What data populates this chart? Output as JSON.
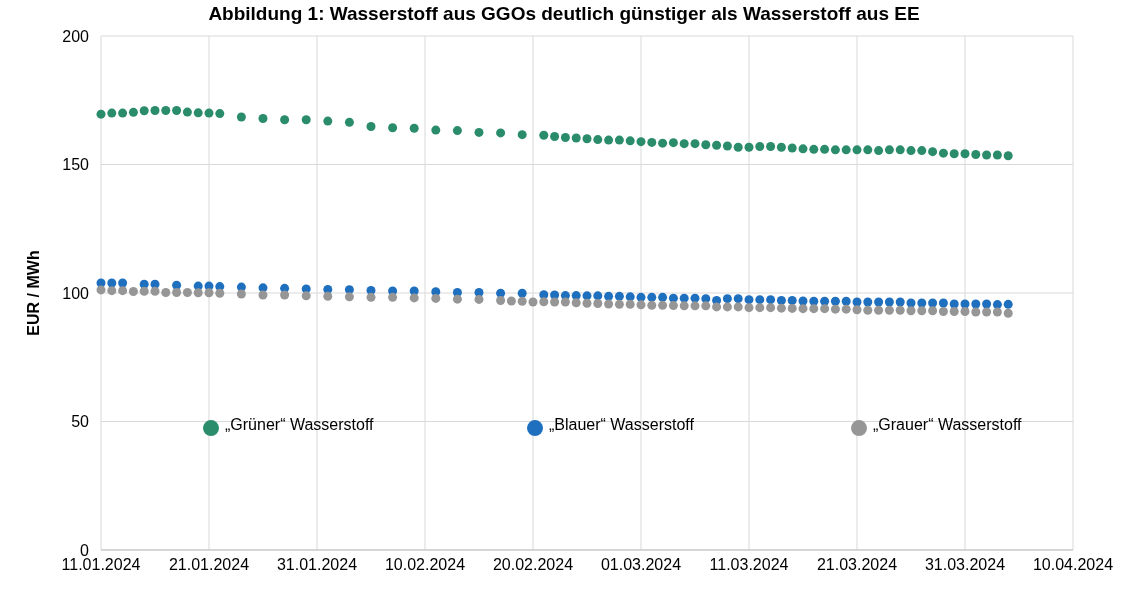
{
  "chart_data": {
    "type": "scatter",
    "title": "Abbildung 1: Wasserstoff aus GGOs deutlich günstiger als Wasserstoff aus EE",
    "ylabel": "EUR / MWh",
    "xlim": [
      "2024-01-11",
      "2024-04-10"
    ],
    "xticks": [
      {
        "value": "2024-01-11",
        "label": "11.01.2024"
      },
      {
        "value": "2024-01-21",
        "label": "21.01.2024"
      },
      {
        "value": "2024-01-31",
        "label": "31.01.2024"
      },
      {
        "value": "2024-02-10",
        "label": "10.02.2024"
      },
      {
        "value": "2024-02-20",
        "label": "20.02.2024"
      },
      {
        "value": "2024-03-01",
        "label": "01.03.2024"
      },
      {
        "value": "2024-03-11",
        "label": "11.03.2024"
      },
      {
        "value": "2024-03-21",
        "label": "21.03.2024"
      },
      {
        "value": "2024-03-31",
        "label": "31.03.2024"
      },
      {
        "value": "2024-04-10",
        "label": "10.04.2024"
      }
    ],
    "ylim": [
      0,
      200
    ],
    "yticks": [
      0,
      50,
      100,
      150,
      200
    ],
    "grid": true,
    "legend": "bottom",
    "marker": "circle",
    "series": [
      {
        "name": "„Grüner“ Wasserstoff",
        "color": "#2a8c6a",
        "x": [
          "2024-01-11",
          "2024-01-12",
          "2024-01-13",
          "2024-01-14",
          "2024-01-15",
          "2024-01-16",
          "2024-01-17",
          "2024-01-18",
          "2024-01-19",
          "2024-01-20",
          "2024-01-21",
          "2024-01-22",
          "2024-01-24",
          "2024-01-26",
          "2024-01-28",
          "2024-01-30",
          "2024-02-01",
          "2024-02-03",
          "2024-02-05",
          "2024-02-07",
          "2024-02-09",
          "2024-02-11",
          "2024-02-13",
          "2024-02-15",
          "2024-02-17",
          "2024-02-19",
          "2024-02-21",
          "2024-02-22",
          "2024-02-23",
          "2024-02-24",
          "2024-02-25",
          "2024-02-26",
          "2024-02-27",
          "2024-02-28",
          "2024-02-29",
          "2024-03-01",
          "2024-03-02",
          "2024-03-03",
          "2024-03-04",
          "2024-03-05",
          "2024-03-06",
          "2024-03-07",
          "2024-03-08",
          "2024-03-09",
          "2024-03-10",
          "2024-03-11",
          "2024-03-12",
          "2024-03-13",
          "2024-03-14",
          "2024-03-15",
          "2024-03-16",
          "2024-03-17",
          "2024-03-18",
          "2024-03-19",
          "2024-03-20",
          "2024-03-21",
          "2024-03-22",
          "2024-03-23",
          "2024-03-24",
          "2024-03-25",
          "2024-03-26",
          "2024-03-27",
          "2024-03-28",
          "2024-03-29",
          "2024-03-30",
          "2024-03-31",
          "2024-04-01",
          "2024-04-02",
          "2024-04-03",
          "2024-04-04"
        ],
        "values": [
          169.6,
          170.0,
          170.0,
          170.3,
          170.9,
          171.0,
          171.0,
          171.0,
          170.4,
          170.1,
          170.0,
          169.8,
          168.5,
          167.9,
          167.4,
          167.4,
          166.9,
          166.4,
          164.8,
          164.3,
          164.1,
          163.4,
          163.2,
          162.5,
          162.3,
          161.6,
          161.4,
          160.9,
          160.5,
          160.3,
          160.0,
          159.7,
          159.5,
          159.5,
          159.2,
          158.9,
          158.6,
          158.3,
          158.5,
          158.1,
          158.1,
          157.7,
          157.5,
          157.2,
          156.7,
          156.7,
          157.0,
          157.0,
          156.7,
          156.4,
          156.1,
          155.9,
          155.9,
          155.7,
          155.7,
          155.7,
          155.7,
          155.4,
          155.7,
          155.7,
          155.4,
          155.4,
          155.0,
          154.4,
          154.2,
          154.2,
          153.9,
          153.7,
          153.7,
          153.4
        ]
      },
      {
        "name": "„Blauer“ Wasserstoff",
        "color": "#1f6fbf",
        "x": [
          "2024-01-11",
          "2024-01-12",
          "2024-01-13",
          "2024-01-15",
          "2024-01-16",
          "2024-01-18",
          "2024-01-20",
          "2024-01-21",
          "2024-01-22",
          "2024-01-24",
          "2024-01-26",
          "2024-01-28",
          "2024-01-30",
          "2024-02-01",
          "2024-02-03",
          "2024-02-05",
          "2024-02-07",
          "2024-02-09",
          "2024-02-11",
          "2024-02-13",
          "2024-02-15",
          "2024-02-17",
          "2024-02-19",
          "2024-02-21",
          "2024-02-22",
          "2024-02-23",
          "2024-02-24",
          "2024-02-25",
          "2024-02-26",
          "2024-02-27",
          "2024-02-28",
          "2024-02-29",
          "2024-03-01",
          "2024-03-02",
          "2024-03-03",
          "2024-03-04",
          "2024-03-05",
          "2024-03-06",
          "2024-03-07",
          "2024-03-08",
          "2024-03-09",
          "2024-03-10",
          "2024-03-11",
          "2024-03-12",
          "2024-03-13",
          "2024-03-14",
          "2024-03-15",
          "2024-03-16",
          "2024-03-17",
          "2024-03-18",
          "2024-03-19",
          "2024-03-20",
          "2024-03-21",
          "2024-03-22",
          "2024-03-23",
          "2024-03-24",
          "2024-03-25",
          "2024-03-26",
          "2024-03-27",
          "2024-03-28",
          "2024-03-29",
          "2024-03-30",
          "2024-03-31",
          "2024-04-01",
          "2024-04-02",
          "2024-04-03",
          "2024-04-04"
        ],
        "values": [
          103.9,
          103.9,
          103.9,
          103.4,
          103.4,
          103.0,
          102.7,
          102.7,
          102.5,
          102.3,
          102.0,
          101.8,
          101.6,
          101.4,
          101.3,
          101.0,
          100.8,
          100.8,
          100.5,
          100.2,
          100.2,
          99.9,
          99.9,
          99.3,
          99.2,
          99.0,
          99.0,
          98.9,
          98.9,
          98.7,
          98.7,
          98.5,
          98.3,
          98.3,
          98.3,
          98.0,
          98.0,
          98.0,
          97.8,
          97.1,
          97.8,
          97.8,
          97.4,
          97.4,
          97.4,
          97.1,
          97.1,
          96.9,
          96.8,
          96.8,
          96.8,
          96.8,
          96.5,
          96.5,
          96.5,
          96.5,
          96.5,
          96.1,
          96.1,
          96.1,
          96.1,
          95.7,
          95.7,
          95.7,
          95.7,
          95.5,
          95.6
        ]
      },
      {
        "name": "„Grauer“ Wasserstoff",
        "color": "#969696",
        "x": [
          "2024-01-11",
          "2024-01-12",
          "2024-01-13",
          "2024-01-14",
          "2024-01-15",
          "2024-01-16",
          "2024-01-17",
          "2024-01-18",
          "2024-01-19",
          "2024-01-20",
          "2024-01-21",
          "2024-01-22",
          "2024-01-24",
          "2024-01-26",
          "2024-01-28",
          "2024-01-30",
          "2024-02-01",
          "2024-02-03",
          "2024-02-05",
          "2024-02-07",
          "2024-02-09",
          "2024-02-11",
          "2024-02-13",
          "2024-02-15",
          "2024-02-17",
          "2024-02-18",
          "2024-02-19",
          "2024-02-20",
          "2024-02-21",
          "2024-02-22",
          "2024-02-23",
          "2024-02-24",
          "2024-02-25",
          "2024-02-26",
          "2024-02-27",
          "2024-02-28",
          "2024-02-29",
          "2024-03-01",
          "2024-03-02",
          "2024-03-03",
          "2024-03-04",
          "2024-03-05",
          "2024-03-06",
          "2024-03-07",
          "2024-03-08",
          "2024-03-09",
          "2024-03-10",
          "2024-03-11",
          "2024-03-12",
          "2024-03-13",
          "2024-03-14",
          "2024-03-15",
          "2024-03-16",
          "2024-03-17",
          "2024-03-18",
          "2024-03-19",
          "2024-03-20",
          "2024-03-21",
          "2024-03-22",
          "2024-03-23",
          "2024-03-24",
          "2024-03-25",
          "2024-03-26",
          "2024-03-27",
          "2024-03-28",
          "2024-03-29",
          "2024-03-30",
          "2024-03-31",
          "2024-04-01",
          "2024-04-02",
          "2024-04-03",
          "2024-04-04"
        ],
        "values": [
          101.2,
          100.9,
          100.9,
          100.6,
          100.7,
          100.7,
          100.2,
          100.2,
          100.2,
          100.1,
          100.1,
          99.9,
          99.6,
          99.2,
          99.2,
          98.9,
          98.7,
          98.5,
          98.3,
          98.3,
          98.1,
          97.9,
          97.6,
          97.5,
          97.1,
          96.9,
          96.8,
          96.5,
          96.6,
          96.5,
          96.5,
          96.2,
          96.0,
          95.9,
          95.7,
          95.6,
          95.6,
          95.4,
          95.2,
          95.2,
          95.1,
          95.0,
          95.0,
          95.0,
          94.6,
          94.6,
          94.6,
          94.3,
          94.3,
          94.3,
          94.1,
          94.0,
          93.9,
          93.9,
          93.9,
          93.7,
          93.7,
          93.5,
          93.3,
          93.3,
          93.3,
          93.3,
          93.1,
          93.1,
          93.1,
          92.8,
          92.8,
          92.8,
          92.6,
          92.6,
          92.6,
          92.1
        ]
      }
    ]
  }
}
